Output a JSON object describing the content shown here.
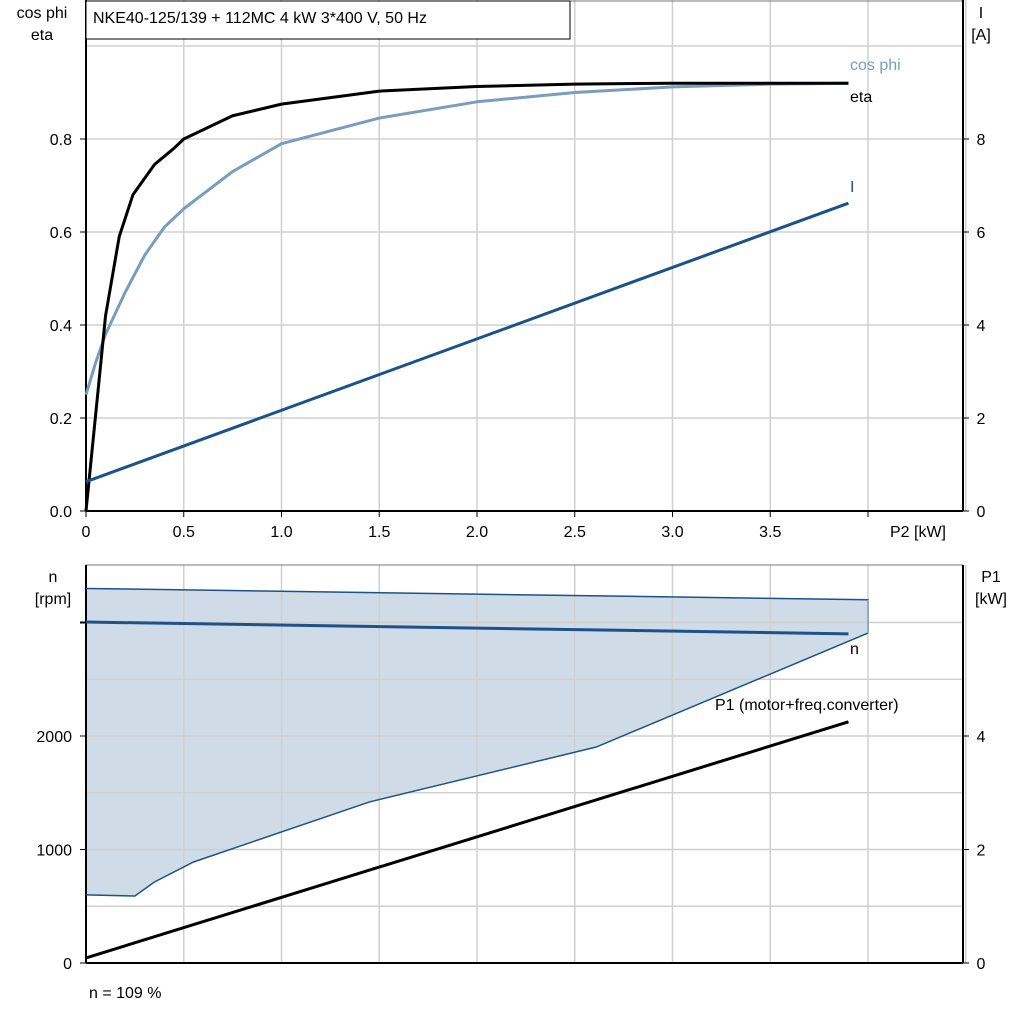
{
  "chart_data": [
    {
      "type": "line",
      "title": "NKE40-125/139 + 112MC   4 kW   3*400 V, 50 Hz",
      "xlabel": "P2 [kW]",
      "xlim": [
        0,
        4.5
      ],
      "xticks": [
        "0",
        "0.5",
        "1.0",
        "1.5",
        "2.0",
        "2.5",
        "3.0",
        "3.5"
      ],
      "ylabel_left": [
        "cos phi",
        "eta"
      ],
      "ylim_left": [
        0,
        1.1
      ],
      "yticks_left": [
        "0.0",
        "0.2",
        "0.4",
        "0.6",
        "0.8"
      ],
      "ylabel_right": [
        "I",
        "[A]"
      ],
      "ylim_right": [
        0,
        11
      ],
      "yticks_right": [
        "0",
        "2",
        "4",
        "6",
        "8"
      ],
      "grid": true,
      "series": [
        {
          "name": "cos phi",
          "axis": "left",
          "color": "#7a9cbf",
          "x": [
            0,
            0.05,
            0.1,
            0.2,
            0.3,
            0.4,
            0.5,
            0.75,
            1.0,
            1.5,
            2.0,
            2.5,
            3.0,
            3.5,
            3.9
          ],
          "y": [
            0.25,
            0.32,
            0.38,
            0.47,
            0.55,
            0.61,
            0.65,
            0.73,
            0.79,
            0.845,
            0.88,
            0.9,
            0.912,
            0.918,
            0.92
          ]
        },
        {
          "name": "eta",
          "axis": "left",
          "color": "#000000",
          "x": [
            0,
            0.1,
            0.17,
            0.24,
            0.35,
            0.45,
            0.5,
            0.75,
            1.0,
            1.5,
            2.0,
            2.5,
            3.0,
            3.9
          ],
          "y": [
            0,
            0.42,
            0.59,
            0.68,
            0.745,
            0.78,
            0.8,
            0.85,
            0.875,
            0.903,
            0.913,
            0.918,
            0.92,
            0.92
          ]
        },
        {
          "name": "I",
          "axis": "right",
          "color": "#1c5289",
          "x": [
            0,
            3.9
          ],
          "y": [
            0.63,
            6.62
          ]
        }
      ]
    },
    {
      "type": "line",
      "xlim": [
        0,
        4.5
      ],
      "ylabel_left": [
        "n",
        "[rpm]"
      ],
      "ylim_left": [
        0,
        3500
      ],
      "yticks_left": [
        "0",
        "1000",
        "2000"
      ],
      "ylabel_right": [
        "P1",
        "[kW]"
      ],
      "ylim_right": [
        0,
        7
      ],
      "yticks_right": [
        "0",
        "2",
        "4"
      ],
      "grid": true,
      "operating_area": {
        "color": "#cfdbe7",
        "upper": {
          "x": [
            0,
            4.0
          ],
          "y": [
            3300,
            3200
          ]
        },
        "lower": {
          "x": [
            0,
            0.25,
            0.35,
            0.55,
            1.45,
            2.61,
            4.0
          ],
          "y": [
            600,
            590,
            714,
            890,
            1419,
            1903,
            2907
          ]
        }
      },
      "series": [
        {
          "name": "n",
          "axis": "left",
          "color": "#1c5289",
          "x": [
            0,
            3.9
          ],
          "y": [
            3004,
            2900
          ]
        },
        {
          "name": "P1 (motor+freq.converter)",
          "axis": "right",
          "color": "#000000",
          "x": [
            0,
            3.9
          ],
          "y": [
            0.09,
            4.25
          ]
        }
      ],
      "footnote": "n = 109 %"
    }
  ]
}
